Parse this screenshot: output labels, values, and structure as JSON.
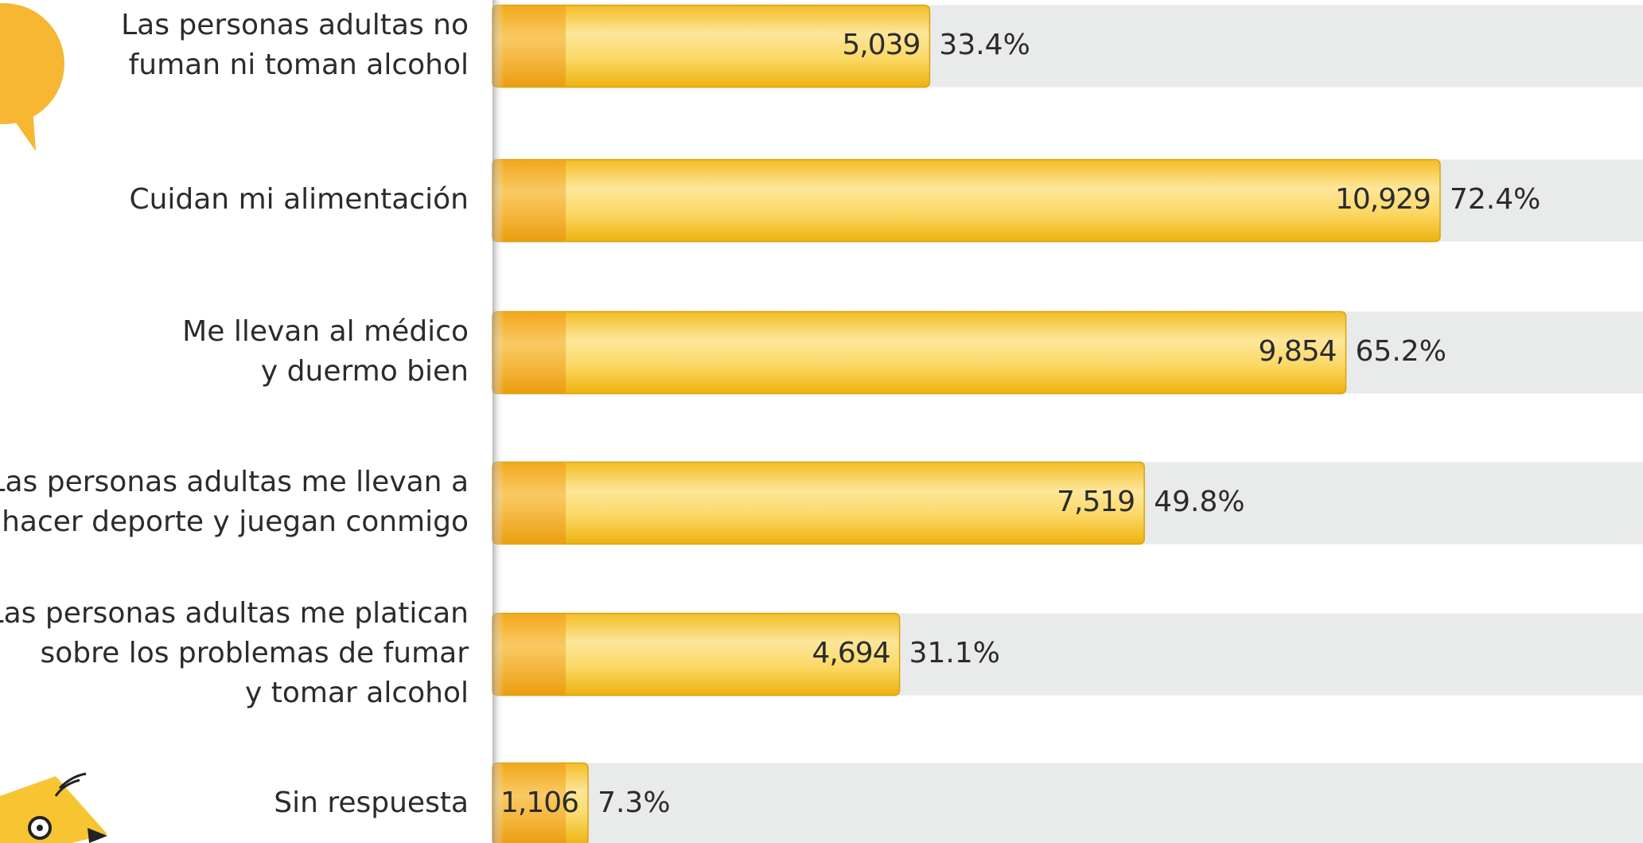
{
  "chart_data": {
    "type": "bar",
    "orientation": "horizontal",
    "categories": [
      "Las personas adultas no\nfuman ni toman alcohol",
      "Cuidan mi alimentación",
      "Me llevan al médico\ny duermo bien",
      "Las personas adultas me llevan a\nhacer deporte y juegan conmigo",
      "Las personas adultas me platican\nsobre los problemas de fumar\ny tomar alcohol",
      "Sin respuesta"
    ],
    "values": [
      33.4,
      72.4,
      65.2,
      49.8,
      31.1,
      7.3
    ],
    "value_labels": [
      "33.4%",
      "72.4%",
      "65.2%",
      "49.8%",
      "31.1%",
      "7.3%"
    ],
    "counts": [
      5039,
      10929,
      9854,
      7519,
      4694,
      1106
    ],
    "count_labels": [
      "5,039",
      "10,929",
      "9,854",
      "7,519",
      "4,694",
      "1,106"
    ],
    "color": "#f7c531",
    "xlim": [
      0,
      100
    ]
  }
}
